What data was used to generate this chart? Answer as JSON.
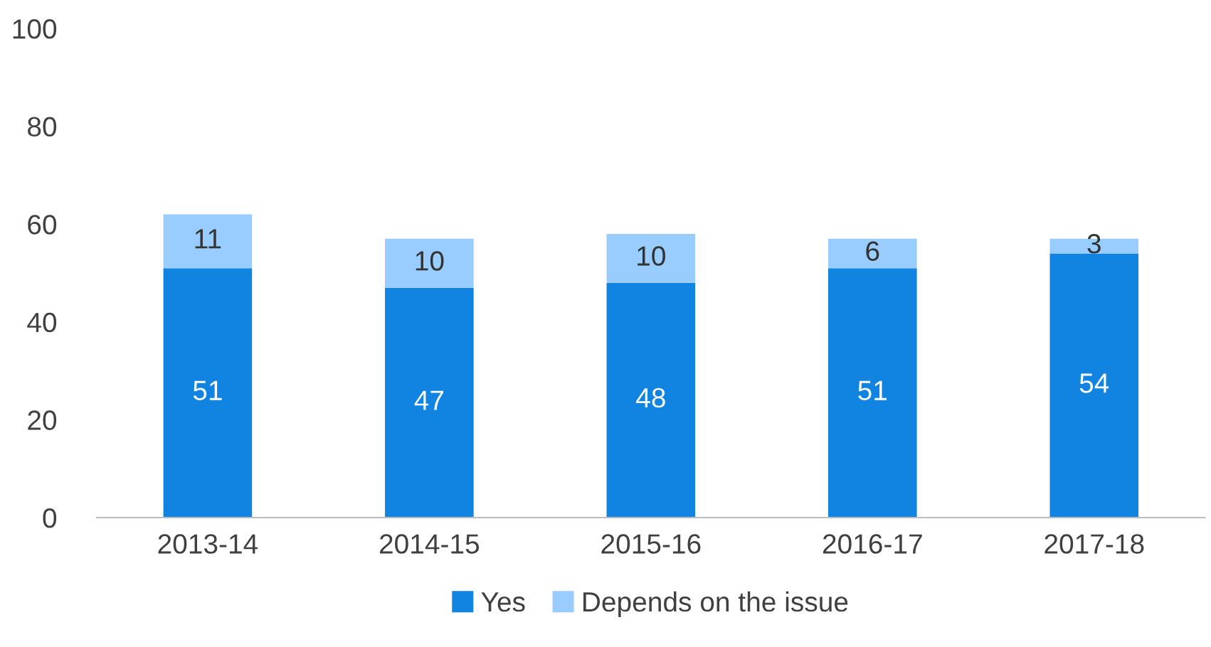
{
  "chart_data": {
    "type": "bar",
    "stacked": true,
    "categories": [
      "2013-14",
      "2014-15",
      "2015-16",
      "2016-17",
      "2017-18"
    ],
    "series": [
      {
        "name": "Yes",
        "color": "#1183e0",
        "values": [
          51,
          47,
          48,
          51,
          54
        ]
      },
      {
        "name": "Depends on the issue",
        "color": "#99ccff",
        "values": [
          11,
          10,
          10,
          6,
          3
        ]
      }
    ],
    "ylim": [
      0,
      100
    ],
    "yticks": [
      0,
      20,
      40,
      60,
      80,
      100
    ],
    "data_labels": true,
    "grid": false,
    "legend": "bottom"
  }
}
